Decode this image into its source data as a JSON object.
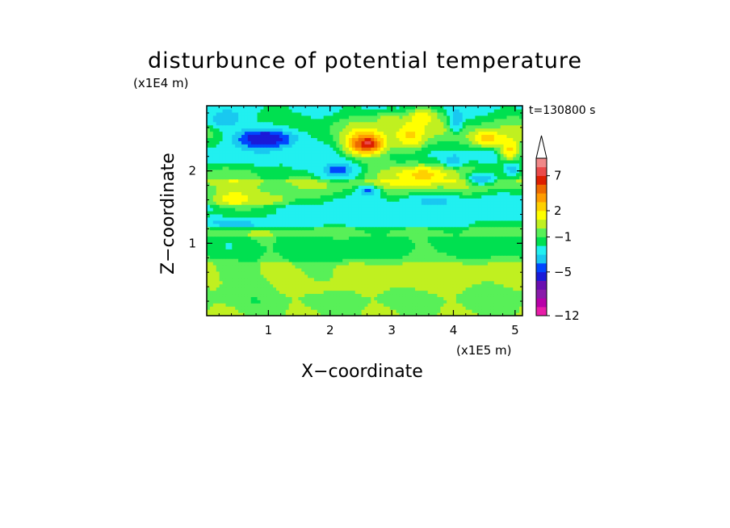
{
  "chart_data": {
    "type": "heatmap",
    "title": "disturbunce of potential temperature",
    "xlabel": "X−coordinate",
    "ylabel": "Z−coordinate",
    "x_unit": "(x1E5 m)",
    "y_unit": "(x1E4 m)",
    "time_label": "t=130800 s",
    "xlim": [
      0,
      5.12
    ],
    "ylim": [
      0,
      2.9
    ],
    "x_ticks": [
      1,
      2,
      3,
      4,
      5
    ],
    "y_ticks": [
      1,
      2
    ],
    "x_tick_labels": [
      "1",
      "2",
      "3",
      "4",
      "5"
    ],
    "y_tick_labels": [
      "1",
      "2"
    ],
    "colorbar": {
      "tick_labels": [
        "7",
        "2",
        "−1",
        "−5",
        "−12"
      ],
      "extend": "max",
      "colors": [
        "#e81ca8",
        "#b800a8",
        "#8a1aaa",
        "#6a0fb0",
        "#1a1ad8",
        "#0046ff",
        "#19c8f0",
        "#21f0f0",
        "#00e050",
        "#58f058",
        "#c0f020",
        "#ffff00",
        "#ffd000",
        "#ff9c00",
        "#ee6a00",
        "#dd1e00",
        "#ea4a4a",
        "#f08888",
        "#f8c0c0"
      ]
    },
    "blobs": [
      {
        "x": 0.97,
        "z": 2.45,
        "rx": 0.52,
        "rz": 0.17,
        "v": -6
      },
      {
        "x": 0.93,
        "z": 2.45,
        "rx": 0.38,
        "rz": 0.1,
        "v": -9
      },
      {
        "x": 0.3,
        "z": 2.72,
        "rx": 0.28,
        "rz": 0.13,
        "v": -5
      },
      {
        "x": 2.1,
        "z": 2.02,
        "rx": 0.32,
        "rz": 0.13,
        "v": -5
      },
      {
        "x": 2.12,
        "z": 2.02,
        "rx": 0.16,
        "rz": 0.06,
        "v": -7
      },
      {
        "x": 2.62,
        "z": 1.72,
        "rx": 0.16,
        "rz": 0.07,
        "v": -6
      },
      {
        "x": 3.68,
        "z": 1.58,
        "rx": 0.38,
        "rz": 0.08,
        "v": -5
      },
      {
        "x": 4.05,
        "z": 2.72,
        "rx": 0.1,
        "rz": 0.16,
        "v": -5
      },
      {
        "x": 4.0,
        "z": 2.15,
        "rx": 0.16,
        "rz": 0.09,
        "v": -5
      },
      {
        "x": 4.45,
        "z": 1.9,
        "rx": 0.22,
        "rz": 0.08,
        "v": -5
      },
      {
        "x": 4.95,
        "z": 2.05,
        "rx": 0.12,
        "rz": 0.1,
        "v": -5
      },
      {
        "x": 0.35,
        "z": 2.18,
        "rx": 0.3,
        "rz": 0.1,
        "v": -2.3
      },
      {
        "x": 1.6,
        "z": 2.12,
        "rx": 0.35,
        "rz": 0.16,
        "v": -1.8
      },
      {
        "x": 0.55,
        "z": 1.28,
        "rx": 0.6,
        "rz": 0.06,
        "v": -5
      },
      {
        "x": 1.2,
        "z": 1.3,
        "rx": 0.7,
        "rz": 0.07,
        "v": -2.5
      },
      {
        "x": 3.2,
        "z": 1.4,
        "rx": 1.7,
        "rz": 0.2,
        "v": -2.2
      },
      {
        "x": 2.35,
        "z": 1.48,
        "rx": 0.5,
        "rz": 0.13,
        "v": -2.4
      },
      {
        "x": 4.7,
        "z": 1.55,
        "rx": 0.4,
        "rz": 0.15,
        "v": -2.2
      },
      {
        "x": 2.55,
        "z": 2.38,
        "rx": 0.38,
        "rz": 0.2,
        "v": 4.5
      },
      {
        "x": 2.6,
        "z": 2.38,
        "rx": 0.22,
        "rz": 0.1,
        "v": 6.5
      },
      {
        "x": 2.62,
        "z": 2.4,
        "rx": 0.06,
        "rz": 0.04,
        "v": 8
      },
      {
        "x": 3.3,
        "z": 2.5,
        "rx": 0.3,
        "rz": 0.25,
        "v": 3.2
      },
      {
        "x": 3.5,
        "z": 1.95,
        "rx": 0.45,
        "rz": 0.15,
        "v": 3.5
      },
      {
        "x": 4.55,
        "z": 2.45,
        "rx": 0.32,
        "rz": 0.13,
        "v": 3.5
      },
      {
        "x": 4.92,
        "z": 2.3,
        "rx": 0.18,
        "rz": 0.18,
        "v": 3.2
      },
      {
        "x": 0.45,
        "z": 1.62,
        "rx": 0.42,
        "rz": 0.12,
        "v": 2.8
      },
      {
        "x": 1.05,
        "z": 1.62,
        "rx": 0.35,
        "rz": 0.1,
        "v": 1.6
      },
      {
        "x": 3.6,
        "z": 0.55,
        "rx": 1.3,
        "rz": 0.28,
        "v": 1.5
      },
      {
        "x": 1.8,
        "z": 0.4,
        "rx": 0.9,
        "rz": 0.16,
        "v": 1.2
      },
      {
        "x": 0.4,
        "z": 0.6,
        "rx": 0.4,
        "rz": 0.2,
        "v": 0.9
      },
      {
        "x": 2.3,
        "z": 0.88,
        "rx": 0.7,
        "rz": 0.12,
        "v": -0.6
      },
      {
        "x": 4.6,
        "z": 0.95,
        "rx": 0.5,
        "rz": 0.12,
        "v": -0.6
      },
      {
        "x": 3.5,
        "z": 2.75,
        "rx": 0.25,
        "rz": 0.12,
        "v": 2.6
      },
      {
        "x": 2.95,
        "z": 2.7,
        "rx": 0.2,
        "rz": 0.15,
        "v": 1.8
      }
    ]
  }
}
